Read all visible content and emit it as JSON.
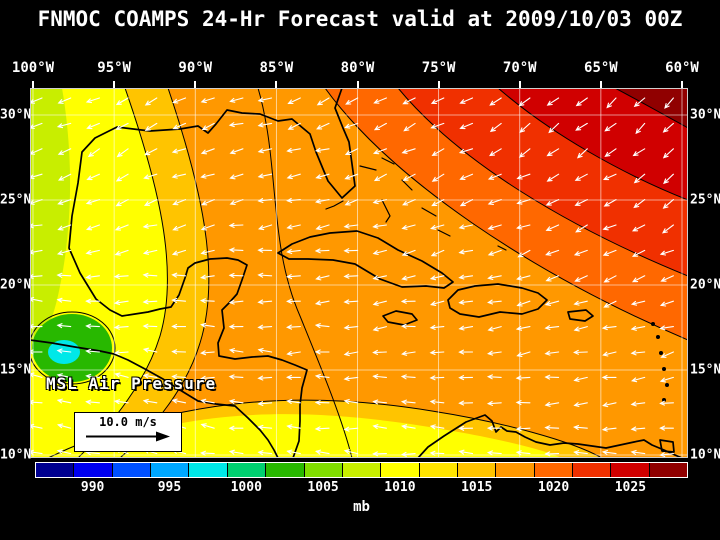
{
  "title": "FNMOC COAMPS 24-Hr Forecast valid at 2009/10/03 00Z",
  "axes": {
    "lon": [
      "100°W",
      "95°W",
      "90°W",
      "85°W",
      "80°W",
      "75°W",
      "70°W",
      "65°W",
      "60°W"
    ],
    "lat": [
      "30°N",
      "25°N",
      "20°N",
      "15°N",
      "10°N"
    ]
  },
  "overlays": {
    "field_label": "MSL Air Pressure",
    "wind_scale": "10.0 m/s"
  },
  "colorbar": {
    "ticks": [
      "990",
      "995",
      "1000",
      "1005",
      "1010",
      "1015",
      "1020",
      "1025"
    ],
    "unit": "mb",
    "colors": [
      "#000090",
      "#0000f0",
      "#0050ff",
      "#00a8ff",
      "#00e8e8",
      "#00d070",
      "#28b800",
      "#80dd00",
      "#c8ee00",
      "#ffff00",
      "#ffe400",
      "#ffc400",
      "#ff9800",
      "#ff6800",
      "#f03000",
      "#d00000",
      "#900000"
    ]
  },
  "chart_data": {
    "type": "heatmap",
    "title": "FNMOC COAMPS 24-Hr Forecast valid at 2009/10/03 00Z",
    "field": "MSL Air Pressure",
    "unit": "mb",
    "valid_time": "2009/10/03 00Z",
    "lon_range_deg_west": [
      100,
      60
    ],
    "lat_range_deg_north": [
      10,
      30
    ],
    "colorbar_ticks_mb": [
      990,
      995,
      1000,
      1005,
      1010,
      1015,
      1020,
      1025
    ],
    "wind_reference_ms": 10.0,
    "regions": [
      {
        "region": "northeast corner (subtropical high, ~65W 30N)",
        "pressure_mb": 1025
      },
      {
        "region": "northeast quadrant (Atlantic)",
        "pressure_mb": 1020
      },
      {
        "region": "central Caribbean / Bahamas",
        "pressure_mb": 1015
      },
      {
        "region": "Gulf of Mexico / western band",
        "pressure_mb": 1010
      },
      {
        "region": "southern band 10-15N",
        "pressure_mb": 1010
      },
      {
        "region": "low near 98W 17N (cyan/green minimum)",
        "pressure_mb": 1000
      }
    ],
    "wind_flow": "predominantly easterly trade winds, turning southwesterly-pointing (anticyclonic) around the high in the northeast"
  }
}
